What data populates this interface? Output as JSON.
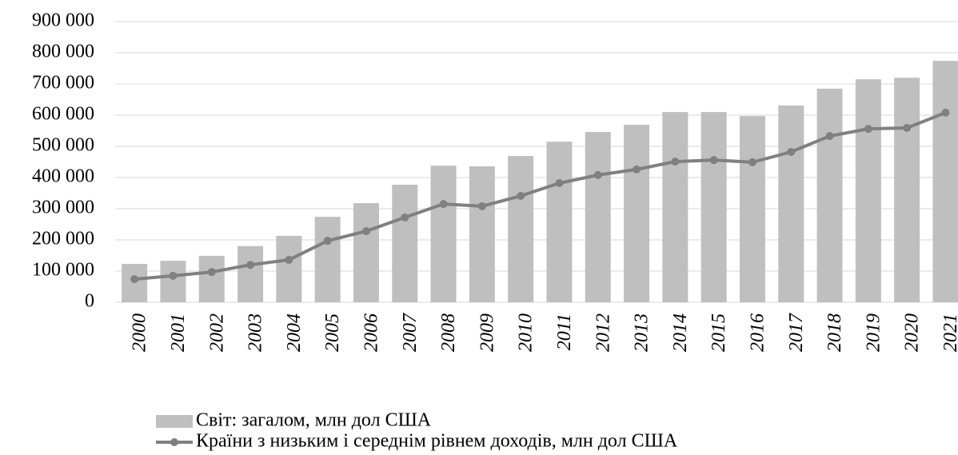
{
  "chart_data": {
    "type": "bar",
    "categories": [
      "2000",
      "2001",
      "2002",
      "2003",
      "2004",
      "2005",
      "2006",
      "2007",
      "2008",
      "2009",
      "2010",
      "2011",
      "2012",
      "2013",
      "2014",
      "2015",
      "2016",
      "2017",
      "2018",
      "2019",
      "2020",
      "2021"
    ],
    "series": [
      {
        "name": "Світ: загалом, млн дол США",
        "type": "bar",
        "color": "#bfbfbf",
        "values": [
          123000,
          133000,
          149000,
          180000,
          213000,
          274000,
          318000,
          377000,
          438000,
          436000,
          469000,
          515000,
          546000,
          569000,
          610000,
          610000,
          597000,
          631000,
          685000,
          715000,
          720000,
          774000
        ]
      },
      {
        "name": "Країни з низьким і середнім рівнем доходів, млн дол США",
        "type": "line",
        "color": "#808080",
        "values": [
          74000,
          85000,
          97000,
          120000,
          136000,
          197000,
          228000,
          272000,
          315000,
          308000,
          341000,
          382000,
          408000,
          426000,
          451000,
          456000,
          449000,
          482000,
          533000,
          556000,
          559000,
          608000
        ]
      }
    ],
    "ylim": [
      0,
      900000
    ],
    "yticks": [
      0,
      {
        "value": 100000,
        "label": "100 000"
      },
      {
        "value": 200000,
        "label": "200 000"
      },
      {
        "value": 300000,
        "label": "300 000"
      },
      {
        "value": 400000,
        "label": "400 000"
      },
      {
        "value": 500000,
        "label": "500 000"
      },
      {
        "value": 600000,
        "label": "600 000"
      },
      {
        "value": 700000,
        "label": "700 000"
      },
      {
        "value": 800000,
        "label": "800 000"
      },
      {
        "value": 900000,
        "label": "900 000"
      }
    ],
    "grid": true,
    "legend": "bottom"
  }
}
